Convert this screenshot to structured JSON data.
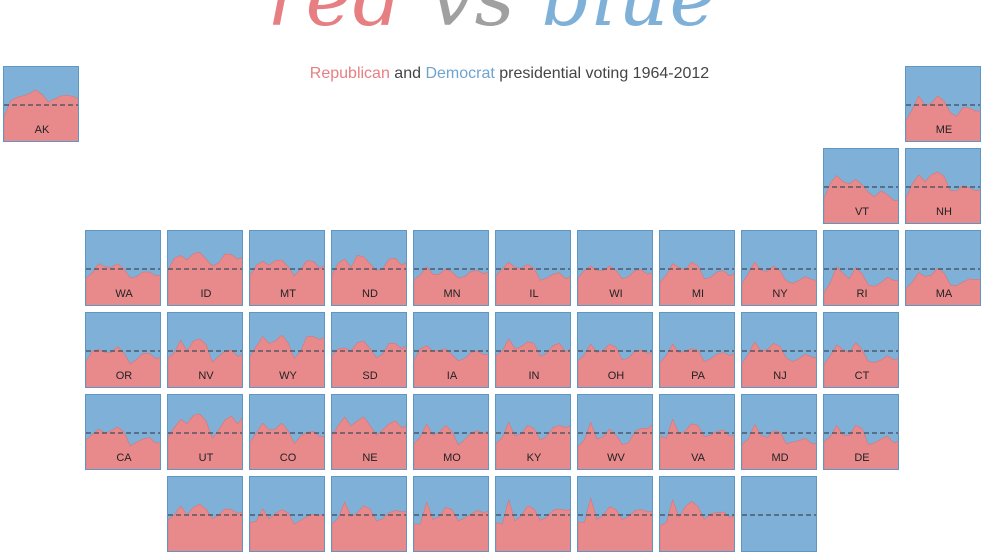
{
  "title": {
    "word1": "red",
    "word1_color": "#e77f82",
    "word2": "vs",
    "word2_color": "#a0a0a0",
    "word3": "blue",
    "word3_color": "#7fb1d8"
  },
  "subtitle": {
    "rep": "Republican",
    "rep_color": "#e77f82",
    "and": " and ",
    "dem": "Democrat",
    "dem_color": "#6fa4cf",
    "rest": " presidential voting 1964-2012"
  },
  "colors": {
    "republican": "#e88a8c",
    "democrat": "#7fb1d8",
    "border": "#5e96c4",
    "midline": "#3e4a5a"
  },
  "chart_data": {
    "type": "area",
    "x": [
      1964,
      1968,
      1972,
      1976,
      1980,
      1984,
      1988,
      1992,
      1996,
      2000,
      2004,
      2008,
      2012
    ],
    "ylim": [
      0,
      1
    ],
    "y_meaning": "republican share of vote",
    "midline": 0.5,
    "states": [
      {
        "abbr": "AK",
        "col": 0,
        "row": 0,
        "values": [
          0.34,
          0.55,
          0.6,
          0.62,
          0.65,
          0.7,
          0.64,
          0.54,
          0.58,
          0.62,
          0.63,
          0.61,
          0.57
        ]
      },
      {
        "abbr": "ME",
        "col": 11,
        "row": 0,
        "values": [
          0.3,
          0.44,
          0.62,
          0.5,
          0.52,
          0.62,
          0.55,
          0.4,
          0.35,
          0.47,
          0.46,
          0.42,
          0.42
        ]
      },
      {
        "abbr": "VT",
        "col": 10,
        "row": 1,
        "values": [
          0.35,
          0.55,
          0.65,
          0.57,
          0.54,
          0.6,
          0.53,
          0.43,
          0.37,
          0.45,
          0.4,
          0.32,
          0.33
        ]
      },
      {
        "abbr": "NH",
        "col": 11,
        "row": 1,
        "values": [
          0.36,
          0.54,
          0.66,
          0.57,
          0.66,
          0.7,
          0.64,
          0.45,
          0.45,
          0.52,
          0.49,
          0.45,
          0.47
        ]
      },
      {
        "abbr": "WA",
        "col": 1,
        "row": 2,
        "values": [
          0.38,
          0.45,
          0.57,
          0.53,
          0.52,
          0.57,
          0.5,
          0.38,
          0.4,
          0.46,
          0.46,
          0.41,
          0.42
        ]
      },
      {
        "abbr": "ID",
        "col": 2,
        "row": 2,
        "values": [
          0.49,
          0.64,
          0.68,
          0.62,
          0.7,
          0.72,
          0.63,
          0.54,
          0.58,
          0.7,
          0.69,
          0.63,
          0.66
        ]
      },
      {
        "abbr": "MT",
        "col": 3,
        "row": 2,
        "values": [
          0.41,
          0.55,
          0.6,
          0.55,
          0.61,
          0.62,
          0.53,
          0.41,
          0.5,
          0.61,
          0.6,
          0.51,
          0.56
        ]
      },
      {
        "abbr": "ND",
        "col": 4,
        "row": 2,
        "values": [
          0.42,
          0.58,
          0.63,
          0.52,
          0.68,
          0.66,
          0.57,
          0.48,
          0.5,
          0.63,
          0.64,
          0.55,
          0.6
        ]
      },
      {
        "abbr": "MN",
        "col": 5,
        "row": 2,
        "values": [
          0.36,
          0.42,
          0.53,
          0.43,
          0.43,
          0.5,
          0.46,
          0.38,
          0.4,
          0.47,
          0.48,
          0.44,
          0.46
        ]
      },
      {
        "abbr": "IL",
        "col": 6,
        "row": 2,
        "values": [
          0.41,
          0.5,
          0.59,
          0.52,
          0.51,
          0.56,
          0.51,
          0.35,
          0.38,
          0.43,
          0.45,
          0.37,
          0.41
        ]
      },
      {
        "abbr": "WI",
        "col": 7,
        "row": 2,
        "values": [
          0.38,
          0.48,
          0.54,
          0.48,
          0.48,
          0.54,
          0.48,
          0.37,
          0.4,
          0.48,
          0.49,
          0.43,
          0.46
        ]
      },
      {
        "abbr": "MI",
        "col": 8,
        "row": 2,
        "values": [
          0.33,
          0.42,
          0.57,
          0.52,
          0.49,
          0.59,
          0.54,
          0.37,
          0.39,
          0.46,
          0.48,
          0.41,
          0.45
        ]
      },
      {
        "abbr": "NY",
        "col": 9,
        "row": 2,
        "values": [
          0.31,
          0.44,
          0.59,
          0.48,
          0.47,
          0.54,
          0.48,
          0.34,
          0.31,
          0.35,
          0.4,
          0.36,
          0.35
        ]
      },
      {
        "abbr": "RI",
        "col": 10,
        "row": 2,
        "values": [
          0.19,
          0.32,
          0.53,
          0.44,
          0.37,
          0.52,
          0.44,
          0.29,
          0.27,
          0.32,
          0.39,
          0.35,
          0.35
        ]
      },
      {
        "abbr": "MA",
        "col": 11,
        "row": 2,
        "values": [
          0.24,
          0.33,
          0.45,
          0.4,
          0.42,
          0.51,
          0.45,
          0.29,
          0.28,
          0.33,
          0.37,
          0.36,
          0.37
        ]
      },
      {
        "abbr": "OR",
        "col": 1,
        "row": 3,
        "values": [
          0.36,
          0.5,
          0.52,
          0.48,
          0.48,
          0.56,
          0.47,
          0.33,
          0.39,
          0.47,
          0.47,
          0.4,
          0.42
        ]
      },
      {
        "abbr": "NV",
        "col": 2,
        "row": 3,
        "values": [
          0.41,
          0.48,
          0.64,
          0.5,
          0.63,
          0.66,
          0.59,
          0.35,
          0.43,
          0.5,
          0.51,
          0.43,
          0.46
        ]
      },
      {
        "abbr": "WY",
        "col": 3,
        "row": 3,
        "values": [
          0.43,
          0.56,
          0.69,
          0.6,
          0.63,
          0.71,
          0.61,
          0.4,
          0.5,
          0.69,
          0.69,
          0.65,
          0.69
        ]
      },
      {
        "abbr": "SD",
        "col": 4,
        "row": 3,
        "values": [
          0.44,
          0.53,
          0.54,
          0.5,
          0.61,
          0.63,
          0.53,
          0.41,
          0.46,
          0.6,
          0.6,
          0.53,
          0.58
        ]
      },
      {
        "abbr": "IA",
        "col": 5,
        "row": 3,
        "values": [
          0.38,
          0.53,
          0.57,
          0.5,
          0.51,
          0.53,
          0.45,
          0.37,
          0.4,
          0.48,
          0.5,
          0.45,
          0.46
        ]
      },
      {
        "abbr": "IN",
        "col": 6,
        "row": 3,
        "values": [
          0.44,
          0.5,
          0.66,
          0.53,
          0.56,
          0.62,
          0.6,
          0.43,
          0.47,
          0.57,
          0.6,
          0.49,
          0.54
        ]
      },
      {
        "abbr": "OH",
        "col": 7,
        "row": 3,
        "values": [
          0.37,
          0.45,
          0.59,
          0.48,
          0.51,
          0.59,
          0.55,
          0.38,
          0.41,
          0.5,
          0.51,
          0.47,
          0.48
        ]
      },
      {
        "abbr": "PA",
        "col": 8,
        "row": 3,
        "values": [
          0.35,
          0.44,
          0.59,
          0.48,
          0.5,
          0.53,
          0.51,
          0.36,
          0.4,
          0.46,
          0.48,
          0.44,
          0.47
        ]
      },
      {
        "abbr": "NJ",
        "col": 9,
        "row": 3,
        "values": [
          0.34,
          0.46,
          0.62,
          0.5,
          0.52,
          0.6,
          0.56,
          0.41,
          0.36,
          0.4,
          0.46,
          0.42,
          0.41
        ]
      },
      {
        "abbr": "CT",
        "col": 10,
        "row": 3,
        "values": [
          0.32,
          0.44,
          0.58,
          0.52,
          0.48,
          0.61,
          0.52,
          0.36,
          0.35,
          0.38,
          0.44,
          0.38,
          0.41
        ]
      },
      {
        "abbr": "CA",
        "col": 1,
        "row": 4,
        "values": [
          0.41,
          0.48,
          0.55,
          0.5,
          0.53,
          0.58,
          0.51,
          0.33,
          0.38,
          0.42,
          0.44,
          0.37,
          0.37
        ]
      },
      {
        "abbr": "UT",
        "col": 2,
        "row": 4,
        "values": [
          0.45,
          0.57,
          0.68,
          0.62,
          0.73,
          0.75,
          0.66,
          0.43,
          0.54,
          0.67,
          0.72,
          0.62,
          0.73
        ]
      },
      {
        "abbr": "CO",
        "col": 3,
        "row": 4,
        "values": [
          0.38,
          0.5,
          0.63,
          0.54,
          0.55,
          0.63,
          0.53,
          0.36,
          0.46,
          0.51,
          0.52,
          0.45,
          0.46
        ]
      },
      {
        "abbr": "NE",
        "col": 4,
        "row": 4,
        "values": [
          0.47,
          0.6,
          0.71,
          0.59,
          0.66,
          0.71,
          0.6,
          0.47,
          0.54,
          0.62,
          0.66,
          0.57,
          0.6
        ]
      },
      {
        "abbr": "MO",
        "col": 5,
        "row": 4,
        "values": [
          0.36,
          0.45,
          0.62,
          0.47,
          0.51,
          0.6,
          0.52,
          0.34,
          0.41,
          0.5,
          0.53,
          0.49,
          0.54
        ]
      },
      {
        "abbr": "KY",
        "col": 6,
        "row": 4,
        "values": [
          0.36,
          0.44,
          0.64,
          0.46,
          0.49,
          0.6,
          0.56,
          0.41,
          0.45,
          0.57,
          0.6,
          0.57,
          0.6
        ]
      },
      {
        "abbr": "WV",
        "col": 7,
        "row": 4,
        "values": [
          0.32,
          0.41,
          0.64,
          0.42,
          0.45,
          0.55,
          0.47,
          0.35,
          0.37,
          0.52,
          0.56,
          0.56,
          0.62
        ]
      },
      {
        "abbr": "VA",
        "col": 8,
        "row": 4,
        "values": [
          0.46,
          0.43,
          0.68,
          0.49,
          0.53,
          0.62,
          0.6,
          0.45,
          0.47,
          0.52,
          0.54,
          0.46,
          0.47
        ]
      },
      {
        "abbr": "MD",
        "col": 9,
        "row": 4,
        "values": [
          0.35,
          0.42,
          0.61,
          0.47,
          0.44,
          0.53,
          0.51,
          0.36,
          0.38,
          0.4,
          0.43,
          0.36,
          0.36
        ]
      },
      {
        "abbr": "DE",
        "col": 10,
        "row": 4,
        "values": [
          0.39,
          0.45,
          0.6,
          0.47,
          0.47,
          0.6,
          0.56,
          0.35,
          0.37,
          0.42,
          0.46,
          0.37,
          0.4
        ]
      },
      {
        "abbr": "",
        "col": 2,
        "row": 5,
        "values": [
          0.44,
          0.5,
          0.62,
          0.5,
          0.6,
          0.64,
          0.58,
          0.45,
          0.5,
          0.58,
          0.57,
          0.52,
          0.55
        ]
      },
      {
        "abbr": "",
        "col": 3,
        "row": 5,
        "values": [
          0.4,
          0.42,
          0.58,
          0.45,
          0.52,
          0.57,
          0.53,
          0.38,
          0.43,
          0.48,
          0.51,
          0.5,
          0.5
        ]
      },
      {
        "abbr": "",
        "col": 4,
        "row": 5,
        "values": [
          0.38,
          0.46,
          0.67,
          0.48,
          0.53,
          0.62,
          0.58,
          0.42,
          0.45,
          0.53,
          0.56,
          0.54,
          0.55
        ]
      },
      {
        "abbr": "",
        "col": 5,
        "row": 5,
        "values": [
          0.38,
          0.38,
          0.67,
          0.44,
          0.48,
          0.6,
          0.57,
          0.42,
          0.46,
          0.51,
          0.56,
          0.53,
          0.56
        ]
      },
      {
        "abbr": "",
        "col": 6,
        "row": 5,
        "values": [
          0.4,
          0.38,
          0.7,
          0.42,
          0.49,
          0.62,
          0.58,
          0.43,
          0.47,
          0.56,
          0.58,
          0.56,
          0.58
        ]
      },
      {
        "abbr": "",
        "col": 7,
        "row": 5,
        "values": [
          0.41,
          0.4,
          0.72,
          0.44,
          0.5,
          0.61,
          0.57,
          0.44,
          0.48,
          0.56,
          0.57,
          0.54,
          0.55
        ]
      },
      {
        "abbr": "",
        "col": 8,
        "row": 5,
        "values": [
          0.36,
          0.4,
          0.7,
          0.47,
          0.61,
          0.68,
          0.61,
          0.44,
          0.52,
          0.53,
          0.54,
          0.47,
          0.5
        ]
      },
      {
        "abbr": "",
        "col": 9,
        "row": 5,
        "values": null
      }
    ]
  }
}
